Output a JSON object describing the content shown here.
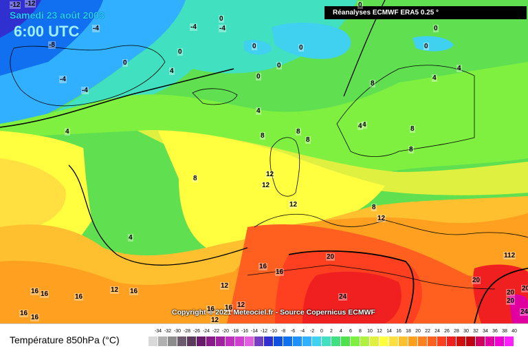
{
  "header": {
    "date": "Samedi 23 août 2003",
    "time": "6:00 UTC",
    "source": "Réanalyses ECMWF ERA5 0.25 °"
  },
  "copyright": "Copyright © 2021 Meteociel.fr - Source Copernicus ECMWF",
  "legend": {
    "title": "Température 850hPa (°C)",
    "ticks": [
      "-34",
      "-32",
      "-30",
      "-28",
      "-26",
      "-24",
      "-22",
      "-20",
      "-18",
      "-16",
      "-14",
      "-12",
      "-10",
      "-8",
      "-6",
      "-4",
      "-2",
      "0",
      "2",
      "4",
      "6",
      "8",
      "10",
      "12",
      "14",
      "16",
      "18",
      "20",
      "22",
      "24",
      "26",
      "28",
      "30",
      "32",
      "34",
      "36",
      "38",
      "40"
    ],
    "colors": [
      "#d9d9d9",
      "#b0b0b0",
      "#8c8c8c",
      "#6e5a6e",
      "#5a3a5a",
      "#6a1a6a",
      "#8a1a8a",
      "#a020a0",
      "#c030c0",
      "#d040d0",
      "#e060e0",
      "#7040c0",
      "#3030d0",
      "#1050e0",
      "#1070f0",
      "#2090ff",
      "#30b0ff",
      "#40d0f0",
      "#40e0c0",
      "#40e080",
      "#50e050",
      "#80f040",
      "#b0f040",
      "#e0f040",
      "#ffff40",
      "#ffe040",
      "#ffc030",
      "#ffa020",
      "#ff8020",
      "#ff6020",
      "#ff4020",
      "#f02020",
      "#d01010",
      "#c00010",
      "#d00060",
      "#e000a0",
      "#f000d0",
      "#ff20ff"
    ]
  },
  "map_labels": [
    {
      "text": "-12"
    },
    {
      "text": "-12"
    },
    {
      "text": "-4"
    },
    {
      "text": "-8"
    },
    {
      "text": "-4"
    },
    {
      "text": "0"
    },
    {
      "text": "0"
    },
    {
      "text": "-4"
    },
    {
      "text": "-4"
    },
    {
      "text": "0"
    },
    {
      "text": "-4"
    },
    {
      "text": "0"
    },
    {
      "text": "4"
    },
    {
      "text": "0"
    },
    {
      "text": "0"
    },
    {
      "text": "0"
    },
    {
      "text": "0"
    },
    {
      "text": "0"
    },
    {
      "text": "0"
    },
    {
      "text": "4"
    },
    {
      "text": "4"
    },
    {
      "text": "8"
    },
    {
      "text": "4"
    },
    {
      "text": "4"
    },
    {
      "text": "4"
    },
    {
      "text": "4"
    },
    {
      "text": "8"
    },
    {
      "text": "8"
    },
    {
      "text": "8"
    },
    {
      "text": "8"
    },
    {
      "text": "8"
    },
    {
      "text": "8"
    },
    {
      "text": "12"
    },
    {
      "text": "12"
    },
    {
      "text": "12"
    },
    {
      "text": "12"
    },
    {
      "text": "8"
    },
    {
      "text": "4"
    },
    {
      "text": "16"
    },
    {
      "text": "16"
    },
    {
      "text": "20"
    },
    {
      "text": "16"
    },
    {
      "text": "16"
    },
    {
      "text": "12"
    },
    {
      "text": "12"
    },
    {
      "text": "16"
    },
    {
      "text": "16"
    },
    {
      "text": "16"
    },
    {
      "text": "12"
    },
    {
      "text": "16"
    },
    {
      "text": "16"
    },
    {
      "text": "12"
    },
    {
      "text": "20"
    },
    {
      "text": "24"
    },
    {
      "text": "20"
    },
    {
      "text": "20"
    },
    {
      "text": "20"
    },
    {
      "text": "112"
    },
    {
      "text": "24"
    },
    {
      "text": "16"
    }
  ]
}
